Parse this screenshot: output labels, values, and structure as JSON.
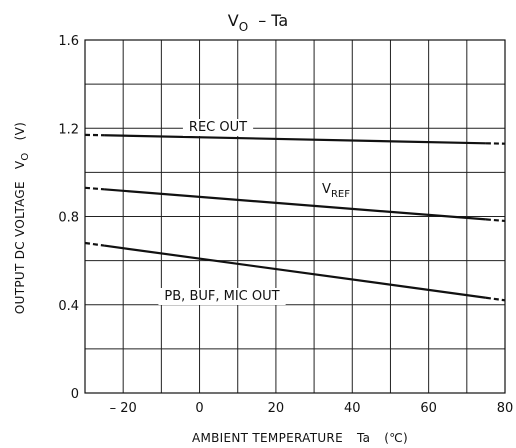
{
  "chart_data": {
    "type": "line",
    "title_main": "V",
    "title_sub": "O",
    "title_rest": "– Ta",
    "xlabel_text": "AMBIENT TEMPERATURE",
    "xlabel_sym": "Ta",
    "xlabel_unit": "(℃)",
    "ylabel_text": "OUTPUT DC VOLTAGE",
    "ylabel_sym": "V",
    "ylabel_sub": "O",
    "ylabel_unit": "(V)",
    "xlim": [
      -30,
      80
    ],
    "ylim": [
      0,
      1.6
    ],
    "x_ticks": [
      {
        "value": -20,
        "label": "– 20"
      },
      {
        "value": 0,
        "label": "0"
      },
      {
        "value": 20,
        "label": "20"
      },
      {
        "value": 40,
        "label": "40"
      },
      {
        "value": 60,
        "label": "60"
      },
      {
        "value": 80,
        "label": "80"
      }
    ],
    "y_ticks": [
      {
        "value": 0,
        "label": "0"
      },
      {
        "value": 0.4,
        "label": "0.4"
      },
      {
        "value": 0.8,
        "label": "0.8"
      },
      {
        "value": 1.2,
        "label": "1.2"
      },
      {
        "value": 1.6,
        "label": "1.6"
      }
    ],
    "grid": true,
    "x_grid_step": 10,
    "y_grid_step": 0.2,
    "series": [
      {
        "name": "REC OUT",
        "x": [
          -30,
          80
        ],
        "y": [
          1.17,
          1.13
        ],
        "dash_to_x": [
          -25,
          75
        ]
      },
      {
        "name_main": "V",
        "name_sub": "REF",
        "x": [
          -30,
          80
        ],
        "y": [
          0.93,
          0.78
        ],
        "dash_to_x": [
          -25,
          75
        ]
      },
      {
        "name": "PB, BUF, MIC OUT",
        "x": [
          -30,
          80
        ],
        "y": [
          0.68,
          0.42
        ],
        "dash_to_x": [
          -25,
          75
        ]
      }
    ]
  }
}
